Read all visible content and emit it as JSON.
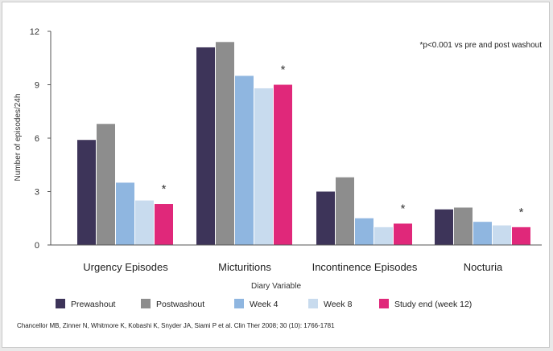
{
  "chart_data": {
    "type": "bar",
    "categories": [
      "Urgency Episodes",
      "Micturitions",
      "Incontinence Episodes",
      "Nocturia"
    ],
    "series": [
      {
        "name": "Prewashout",
        "color": "#3d3459",
        "values": [
          5.9,
          11.1,
          3.0,
          2.0
        ]
      },
      {
        "name": "Postwashout",
        "color": "#8d8d8d",
        "values": [
          6.8,
          11.4,
          3.8,
          2.1
        ]
      },
      {
        "name": "Week 4",
        "color": "#8fb6e0",
        "values": [
          3.5,
          9.5,
          1.5,
          1.3
        ]
      },
      {
        "name": "Week 8",
        "color": "#c8dbee",
        "values": [
          2.5,
          8.8,
          1.0,
          1.1
        ]
      },
      {
        "name": "Study end (week 12)",
        "color": "#e0287a",
        "values": [
          2.3,
          9.0,
          1.2,
          1.0
        ]
      }
    ],
    "significant": [
      true,
      true,
      true,
      true
    ],
    "significance_marker": "*",
    "ylim": [
      0,
      12
    ],
    "yticks": [
      "0",
      "3",
      "6",
      "9",
      "12"
    ],
    "ylabel": "Number of episodes/24h",
    "xlabel": "Diary Variable",
    "annotation": "*p<0.001 vs pre and post washout",
    "legend_position": "bottom",
    "grid": false
  },
  "citation": "Chancellor MB, Zinner N, Whitmore K, Kobashi K, Snyder JA, Siami P et al. Clin Ther 2008; 30 (10): 1766-1781"
}
